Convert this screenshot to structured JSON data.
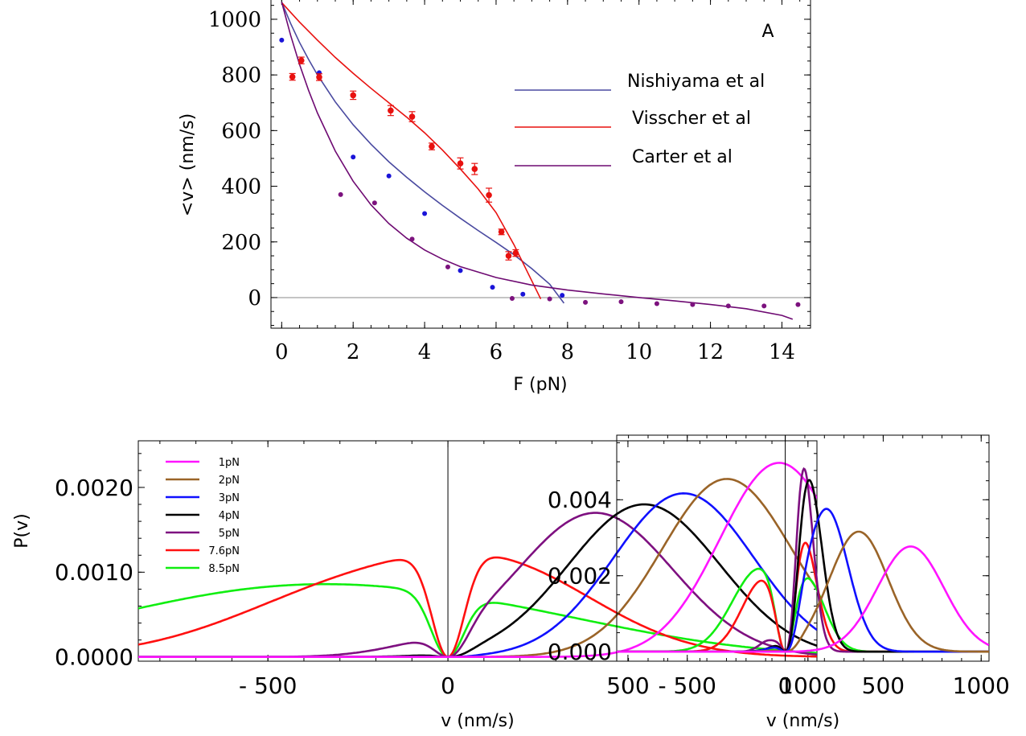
{
  "chart_data": [
    {
      "type": "scatter",
      "panel_label": "A",
      "xlabel": "F (pN)",
      "ylabel": "<v> (nm/s)",
      "xlim": [
        -0.3,
        14.8
      ],
      "ylim": [
        -110,
        1075
      ],
      "xticks": [
        0,
        2,
        4,
        6,
        8,
        10,
        12,
        14
      ],
      "yticks": [
        0,
        200,
        400,
        600,
        800,
        1000
      ],
      "grid": false,
      "zero_line": true,
      "legend_placement": "right",
      "legend": [
        "Nishiyama et al",
        "Visscher et al",
        "Carter et al"
      ],
      "series": [
        {
          "name": "Nishiyama et al",
          "color": "#1a14d8",
          "line_color": "#4a4aa0",
          "points": [
            [
              0.0,
              925
            ],
            [
              1.05,
              808
            ],
            [
              2.0,
              505
            ],
            [
              3.0,
              437
            ],
            [
              4.0,
              302
            ],
            [
              5.0,
              97
            ],
            [
              5.9,
              37
            ],
            [
              6.75,
              12
            ],
            [
              7.85,
              8
            ]
          ],
          "curve": [
            [
              0.0,
              1062
            ],
            [
              0.25,
              985
            ],
            [
              0.5,
              917
            ],
            [
              0.75,
              856
            ],
            [
              1.0,
              800
            ],
            [
              1.5,
              703
            ],
            [
              2.0,
              621
            ],
            [
              2.5,
              551
            ],
            [
              3.0,
              488
            ],
            [
              3.5,
              432
            ],
            [
              4.0,
              380
            ],
            [
              4.5,
              331
            ],
            [
              5.0,
              285
            ],
            [
              5.5,
              241
            ],
            [
              6.0,
              198
            ],
            [
              6.5,
              154
            ],
            [
              7.0,
              104
            ],
            [
              7.5,
              48
            ],
            [
              7.9,
              -20
            ]
          ]
        },
        {
          "name": "Visscher et al",
          "color": "#e8110f",
          "line_color": "#e8110f",
          "points": [
            [
              0.3,
              793
            ],
            [
              0.55,
              852
            ],
            [
              1.05,
              792
            ],
            [
              2.0,
              727
            ],
            [
              3.05,
              672
            ],
            [
              3.65,
              650
            ],
            [
              4.2,
              543
            ],
            [
              5.0,
              482
            ],
            [
              5.4,
              462
            ],
            [
              5.8,
              368
            ],
            [
              6.15,
              236
            ],
            [
              6.35,
              150
            ],
            [
              6.55,
              160
            ]
          ],
          "errors": [
            12,
            12,
            12,
            15,
            18,
            18,
            12,
            20,
            20,
            25,
            10,
            15,
            12
          ],
          "curve": [
            [
              0.0,
              1060
            ],
            [
              0.5,
              990
            ],
            [
              1.0,
              925
            ],
            [
              1.5,
              863
            ],
            [
              2.0,
              806
            ],
            [
              2.5,
              752
            ],
            [
              3.0,
              700
            ],
            [
              3.5,
              648
            ],
            [
              4.0,
              592
            ],
            [
              4.5,
              530
            ],
            [
              5.0,
              462
            ],
            [
              5.5,
              390
            ],
            [
              6.0,
              305
            ],
            [
              6.5,
              190
            ],
            [
              7.0,
              60
            ],
            [
              7.25,
              -5
            ]
          ]
        },
        {
          "name": "Carter et al",
          "color": "#7c127e",
          "line_color": "#6e0a72",
          "points": [
            [
              1.65,
              370
            ],
            [
              2.6,
              340
            ],
            [
              3.65,
              210
            ],
            [
              4.65,
              110
            ],
            [
              6.45,
              -3
            ],
            [
              7.5,
              -5
            ],
            [
              8.5,
              -17
            ],
            [
              9.5,
              -15
            ],
            [
              10.5,
              -22
            ],
            [
              11.5,
              -25
            ],
            [
              12.5,
              -30
            ],
            [
              13.5,
              -30
            ],
            [
              14.45,
              -25
            ]
          ],
          "curve": [
            [
              0.0,
              1062
            ],
            [
              0.25,
              943
            ],
            [
              0.5,
              838
            ],
            [
              0.75,
              745
            ],
            [
              1.0,
              663
            ],
            [
              1.5,
              526
            ],
            [
              2.0,
              418
            ],
            [
              2.5,
              333
            ],
            [
              3.0,
              266
            ],
            [
              3.5,
              213
            ],
            [
              4.0,
              171
            ],
            [
              4.5,
              138
            ],
            [
              5.0,
              111
            ],
            [
              6.0,
              72
            ],
            [
              7.0,
              45
            ],
            [
              8.0,
              27
            ],
            [
              9.0,
              13
            ],
            [
              10.0,
              0
            ],
            [
              11.0,
              -12
            ],
            [
              12.0,
              -25
            ],
            [
              13.0,
              -40
            ],
            [
              14.0,
              -64
            ],
            [
              14.3,
              -78
            ]
          ]
        }
      ]
    },
    {
      "type": "line",
      "xlabel": "v (nm/s)",
      "ylabel": "P(v)",
      "xlim": [
        -860,
        1025
      ],
      "ylim": [
        -5e-05,
        0.00255
      ],
      "xticks": [
        -500,
        0,
        500,
        1000
      ],
      "xtick_labels": [
        "- 500",
        "0",
        "500",
        "1000"
      ],
      "yticks": [
        0.0,
        0.001,
        0.002
      ],
      "ytick_labels": [
        "0.0000",
        "0.0010",
        "0.0020"
      ],
      "grid": false,
      "zero_line": true,
      "legend_placement": "top-left",
      "series": [
        {
          "name": "1pN",
          "color": "#ff14ff",
          "peaks": [
            {
              "mu": 920,
              "sigma": 165,
              "amp": 0.00229
            }
          ]
        },
        {
          "name": "2pN",
          "color": "#9a6428",
          "peaks": [
            {
              "mu": 775,
              "sigma": 180,
              "amp": 0.0021
            }
          ]
        },
        {
          "name": "3pN",
          "color": "#1010ff",
          "peaks": [
            {
              "mu": 655,
              "sigma": 195,
              "amp": 0.00193
            }
          ]
        },
        {
          "name": "4pN",
          "color": "#000000",
          "peaks": [
            {
              "mu": 545,
              "sigma": 210,
              "amp": 0.0018
            }
          ]
        },
        {
          "name": "5pN",
          "color": "#7e1080",
          "peaks": [
            {
              "mu": 410,
              "sigma": 215,
              "amp": 0.0017
            },
            {
              "mu": -90,
              "sigma": 130,
              "amp": 8e-05
            }
          ]
        },
        {
          "name": "7.6pN",
          "color": "#ff1010",
          "peaks": [
            {
              "mu": 200,
              "sigma": 260,
              "amp": 0.00069
            },
            {
              "mu": -215,
              "sigma": 340,
              "amp": 0.00088
            }
          ]
        },
        {
          "name": "8.5pN",
          "color": "#10ee10",
          "peaks": [
            {
              "mu": 250,
              "sigma": 400,
              "amp": 0.00021
            },
            {
              "mu": -430,
              "sigma": 520,
              "amp": 0.0008
            }
          ]
        }
      ]
    },
    {
      "type": "line",
      "xlabel": "v (nm/s)",
      "ylabel": "",
      "xlim": [
        -860,
        1040
      ],
      "ylim": [
        -0.00025,
        0.0057
      ],
      "xticks": [
        -500,
        0,
        500,
        1000
      ],
      "xtick_labels": [
        "- 500",
        "0",
        "500",
        "1000"
      ],
      "yticks": [
        0.0,
        0.002,
        0.004
      ],
      "ytick_labels": [
        "0.000",
        "0.002",
        "0.004"
      ],
      "grid": false,
      "zero_line": true,
      "series": [
        {
          "name": "1pN",
          "color": "#ff14ff",
          "peaks": [
            {
              "mu": 640,
              "sigma": 170,
              "amp": 0.00277
            }
          ]
        },
        {
          "name": "2pN",
          "color": "#9a6428",
          "peaks": [
            {
              "mu": 375,
              "sigma": 150,
              "amp": 0.00316
            }
          ]
        },
        {
          "name": "3pN",
          "color": "#1010ff",
          "peaks": [
            {
              "mu": 210,
              "sigma": 110,
              "amp": 0.00376
            }
          ]
        },
        {
          "name": "4pN",
          "color": "#000000",
          "peaks": [
            {
              "mu": 115,
              "sigma": 70,
              "amp": 0.00466
            },
            {
              "mu": -80,
              "sigma": 60,
              "amp": 4e-05
            }
          ]
        },
        {
          "name": "5pN",
          "color": "#7e1080",
          "peaks": [
            {
              "mu": 80,
              "sigma": 55,
              "amp": 0.0056
            },
            {
              "mu": -80,
              "sigma": 50,
              "amp": 0.0003
            }
          ]
        },
        {
          "name": "7.6pN",
          "color": "#ff1010",
          "peaks": [
            {
              "mu": 90,
              "sigma": 70,
              "amp": 0.00285
            },
            {
              "mu": -110,
              "sigma": 110,
              "amp": 0.0019
            }
          ]
        },
        {
          "name": "8.5pN",
          "color": "#10ee10",
          "peaks": [
            {
              "mu": 120,
              "sigma": 90,
              "amp": 0.00154
            },
            {
              "mu": -130,
              "sigma": 140,
              "amp": 0.00218
            }
          ]
        }
      ]
    }
  ]
}
